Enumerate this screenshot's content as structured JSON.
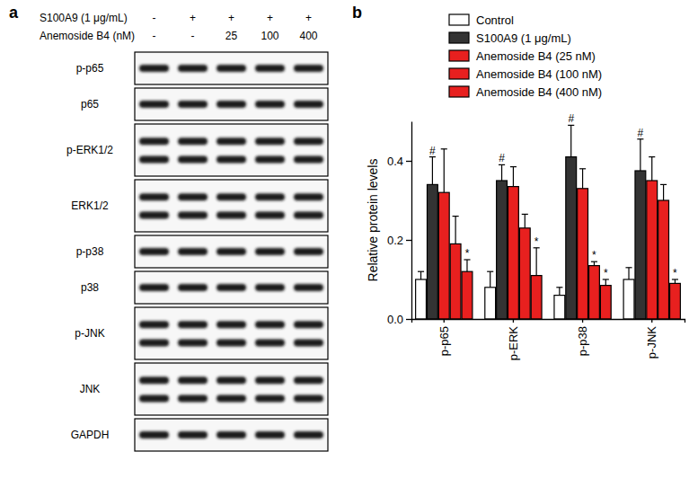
{
  "blot": {
    "panel_label": "a",
    "treatments": [
      {
        "label": "S100A9 (1 μg/mL)",
        "lanes": [
          "-",
          "+",
          "+",
          "+",
          "+"
        ]
      },
      {
        "label": "Anemoside B4 (nM)",
        "lanes": [
          "-",
          "-",
          "25",
          "100",
          "400"
        ]
      }
    ],
    "rows": [
      {
        "label": "p-p65",
        "doublet": false
      },
      {
        "label": "p65",
        "doublet": false
      },
      {
        "label": "p-ERK1/2",
        "doublet": true
      },
      {
        "label": "ERK1/2",
        "doublet": true
      },
      {
        "label": "p-p38",
        "doublet": false
      },
      {
        "label": "p38",
        "doublet": false
      },
      {
        "label": "p-JNK",
        "doublet": true
      },
      {
        "label": "JNK",
        "doublet": true
      },
      {
        "label": "GAPDH",
        "doublet": false
      }
    ]
  },
  "chart_data": {
    "type": "bar",
    "panel_label": "b",
    "ylabel": "Relative protein levels",
    "categories": [
      "p-p65",
      "p-ERK",
      "p-p38",
      "p-JNK"
    ],
    "series": [
      {
        "name": "Control",
        "color": "#ffffff",
        "values": [
          0.1,
          0.08,
          0.06,
          0.1
        ],
        "errors": [
          0.02,
          0.04,
          0.02,
          0.03
        ],
        "annotations": [
          null,
          null,
          null,
          null
        ]
      },
      {
        "name": "S100A9 (1 μg/mL)",
        "color": "#333333",
        "values": [
          0.34,
          0.35,
          0.41,
          0.375
        ],
        "errors": [
          0.07,
          0.04,
          0.08,
          0.08
        ],
        "annotations": [
          "#",
          "#",
          "#",
          "#"
        ]
      },
      {
        "name": "Anemoside B4 (25 nM)",
        "color": "#e8201f",
        "values": [
          0.32,
          0.335,
          0.33,
          0.35
        ],
        "errors": [
          0.11,
          0.05,
          0.05,
          0.06
        ],
        "annotations": [
          null,
          null,
          null,
          null
        ]
      },
      {
        "name": "Anemoside B4 (100 nM)",
        "color": "#e8201f",
        "values": [
          0.19,
          0.23,
          0.135,
          0.3
        ],
        "errors": [
          0.07,
          0.035,
          0.01,
          0.04
        ],
        "annotations": [
          null,
          null,
          "*",
          null
        ]
      },
      {
        "name": "Anemoside B4 (400 nM)",
        "color": "#e8201f",
        "values": [
          0.12,
          0.11,
          0.085,
          0.09
        ],
        "errors": [
          0.03,
          0.07,
          0.015,
          0.01
        ],
        "annotations": [
          "*",
          "*",
          "*",
          "*"
        ]
      }
    ],
    "ylim": [
      0,
      0.5
    ],
    "yticks": [
      {
        "value": 0,
        "label": "0.0"
      },
      0.2,
      0.4
    ],
    "legend": "top-right",
    "grid": false
  }
}
